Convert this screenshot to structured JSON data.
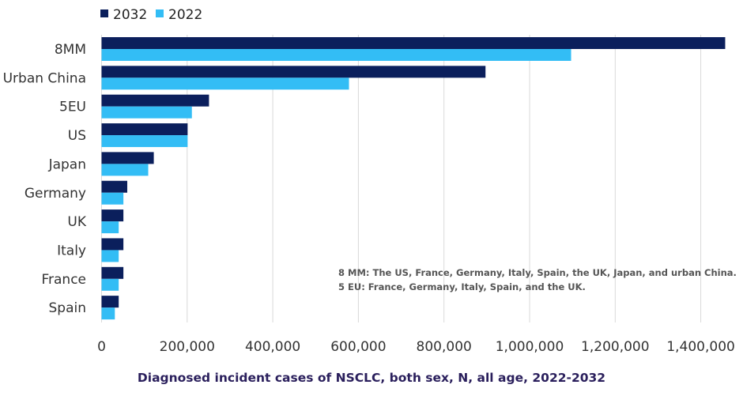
{
  "chart_data": {
    "type": "bar",
    "orientation": "horizontal",
    "title": "",
    "xlabel": "Diagnosed incident cases of NSCLC, both sex, N, all age, 2022-2032",
    "ylabel": "",
    "categories": [
      "8MM",
      "Urban China",
      "5EU",
      "US",
      "Japan",
      "Germany",
      "UK",
      "Italy",
      "France",
      "Spain"
    ],
    "series": [
      {
        "name": "2032",
        "color": "#0b1f5c",
        "values": [
          1457000,
          897000,
          251000,
          201000,
          122000,
          60000,
          51000,
          51000,
          51000,
          40000
        ]
      },
      {
        "name": "2022",
        "color": "#33bdf5",
        "values": [
          1097000,
          578000,
          211000,
          201000,
          109000,
          51000,
          40000,
          40000,
          40000,
          31000
        ]
      }
    ],
    "xlim": [
      0,
      1460000
    ],
    "xticks": [
      0,
      200000,
      400000,
      600000,
      800000,
      1000000,
      1200000,
      1400000
    ],
    "xtick_labels": [
      "0",
      "200,000",
      "400,000",
      "600,000",
      "800,000",
      "1,000,000",
      "1,200,000",
      "1,400,000"
    ],
    "grid": "vertical",
    "legend": "top-left",
    "annotations": [
      "8 MM: The US, France, Germany, Italy, Spain, the UK, Japan, and urban China.",
      "5 EU: France, Germany, Italy, Spain, and the UK."
    ]
  }
}
